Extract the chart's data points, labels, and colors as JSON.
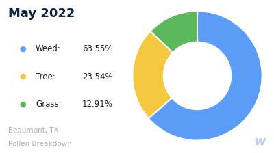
{
  "title": "May 2022",
  "title_color": "#0d2340",
  "title_fontsize": 13,
  "title_fontweight": "bold",
  "labels": [
    "Weed",
    "Tree",
    "Grass"
  ],
  "values": [
    63.55,
    23.54,
    12.91
  ],
  "colors": [
    "#5b9cf6",
    "#f5c842",
    "#5cb85c"
  ],
  "legend_dot_colors": [
    "#5b9cf6",
    "#f5c842",
    "#5cb85c"
  ],
  "subtitle_line1": "Beaumont, TX",
  "subtitle_line2": "Pollen Breakdown",
  "subtitle_color": "#b0b0b0",
  "subtitle_fontsize": 7.5,
  "background_color": "#ffffff",
  "watermark": "w",
  "watermark_color": "#c0d0e8",
  "legend_fontsize": 8.5,
  "donut_width": 0.48
}
